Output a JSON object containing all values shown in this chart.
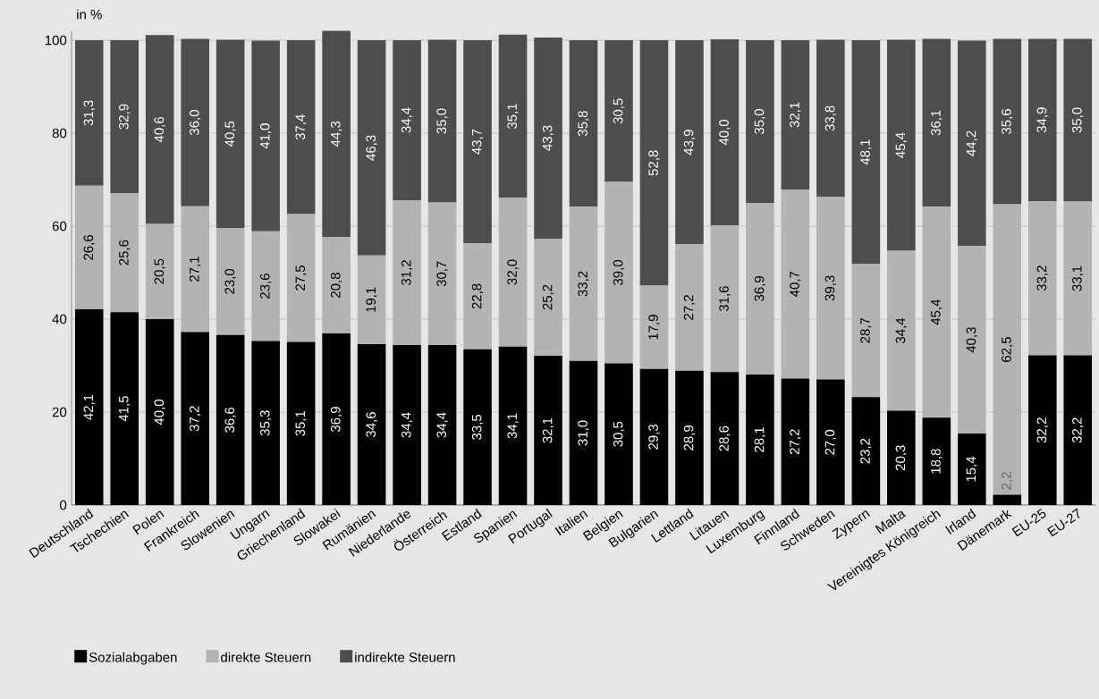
{
  "chart_data": {
    "type": "bar",
    "stacked": true,
    "ylabel": "in %",
    "categories": [
      "Deutschland",
      "Tschechien",
      "Polen",
      "Frankreich",
      "Slowenien",
      "Ungarn",
      "Griechenland",
      "Slowakei",
      "Rumänien",
      "Niederlande",
      "Österreich",
      "Estland",
      "Spanien",
      "Portugal",
      "Italien",
      "Belgien",
      "Bulgarien",
      "Lettland",
      "Litauen",
      "Luxemburg",
      "Finnland",
      "Schweden",
      "Zypern",
      "Malta",
      "Vereinigtes Königreich",
      "Irland",
      "Dänemark",
      "EU-25",
      "EU-27"
    ],
    "series": [
      {
        "name": "Sozialabgaben",
        "color": "#000000",
        "values": [
          42.1,
          41.5,
          40.0,
          37.2,
          36.6,
          35.3,
          35.1,
          36.9,
          34.6,
          34.4,
          34.4,
          33.5,
          34.1,
          32.1,
          31.0,
          30.5,
          29.3,
          28.9,
          28.6,
          28.1,
          27.2,
          27.0,
          23.2,
          20.3,
          18.8,
          15.4,
          2.2,
          32.2,
          32.2
        ],
        "value_labels": [
          "42,1",
          "41,5",
          "40,0",
          "37,2",
          "36,6",
          "35,3",
          "35,1",
          "36,9",
          "34,6",
          "34,4",
          "34,4",
          "33,5",
          "34,1",
          "32,1",
          "31,0",
          "30,5",
          "29,3",
          "28,9",
          "28,6",
          "28,1",
          "27,2",
          "27,0",
          "23,2",
          "20,3",
          "18,8",
          "15,4",
          "2,2",
          "32,2",
          "32,2"
        ]
      },
      {
        "name": "direkte Steuern",
        "color": "#b3b3b3",
        "values": [
          26.6,
          25.6,
          20.5,
          27.1,
          23.0,
          23.6,
          27.5,
          20.8,
          19.1,
          31.2,
          30.7,
          22.8,
          32.0,
          25.2,
          33.2,
          39.0,
          17.9,
          27.2,
          31.6,
          36.9,
          40.7,
          39.3,
          28.7,
          34.4,
          45.4,
          40.3,
          62.5,
          33.2,
          33.1
        ],
        "value_labels": [
          "26,6",
          "25,6",
          "20,5",
          "27,1",
          "23,0",
          "23,6",
          "27,5",
          "20,8",
          "19,1",
          "31,2",
          "30,7",
          "22,8",
          "32,0",
          "25,2",
          "33,2",
          "39,0",
          "17,9",
          "27,2",
          "31,6",
          "36,9",
          "40,7",
          "39,3",
          "28,7",
          "34,4",
          "45,4",
          "40,3",
          "62,5",
          "33,2",
          "33,1"
        ]
      },
      {
        "name": "indirekte Steuern",
        "color": "#4d4d4d",
        "values": [
          31.3,
          32.9,
          40.6,
          36.0,
          40.5,
          41.0,
          37.4,
          44.3,
          46.3,
          34.4,
          35.0,
          43.7,
          35.1,
          43.3,
          35.8,
          30.5,
          52.8,
          43.9,
          40.0,
          35.0,
          32.1,
          33.8,
          48.1,
          45.4,
          36.1,
          44.2,
          35.6,
          34.9,
          35.0
        ],
        "value_labels": [
          "31,3",
          "32,9",
          "40,6",
          "36,0",
          "40,5",
          "41,0",
          "37,4",
          "44,3",
          "46,3",
          "34,4",
          "35,0",
          "43,7",
          "35,1",
          "43,3",
          "35,8",
          "30,5",
          "52,8",
          "43,9",
          "40,0",
          "35,0",
          "32,1",
          "33,8",
          "48,1",
          "45,4",
          "36,1",
          "44,2",
          "35,6",
          "34,9",
          "35,0"
        ]
      }
    ],
    "ylim": [
      0,
      102
    ],
    "yticks": [
      0,
      20,
      40,
      60,
      80,
      100
    ],
    "grid": "y",
    "legend": "bottom left"
  }
}
